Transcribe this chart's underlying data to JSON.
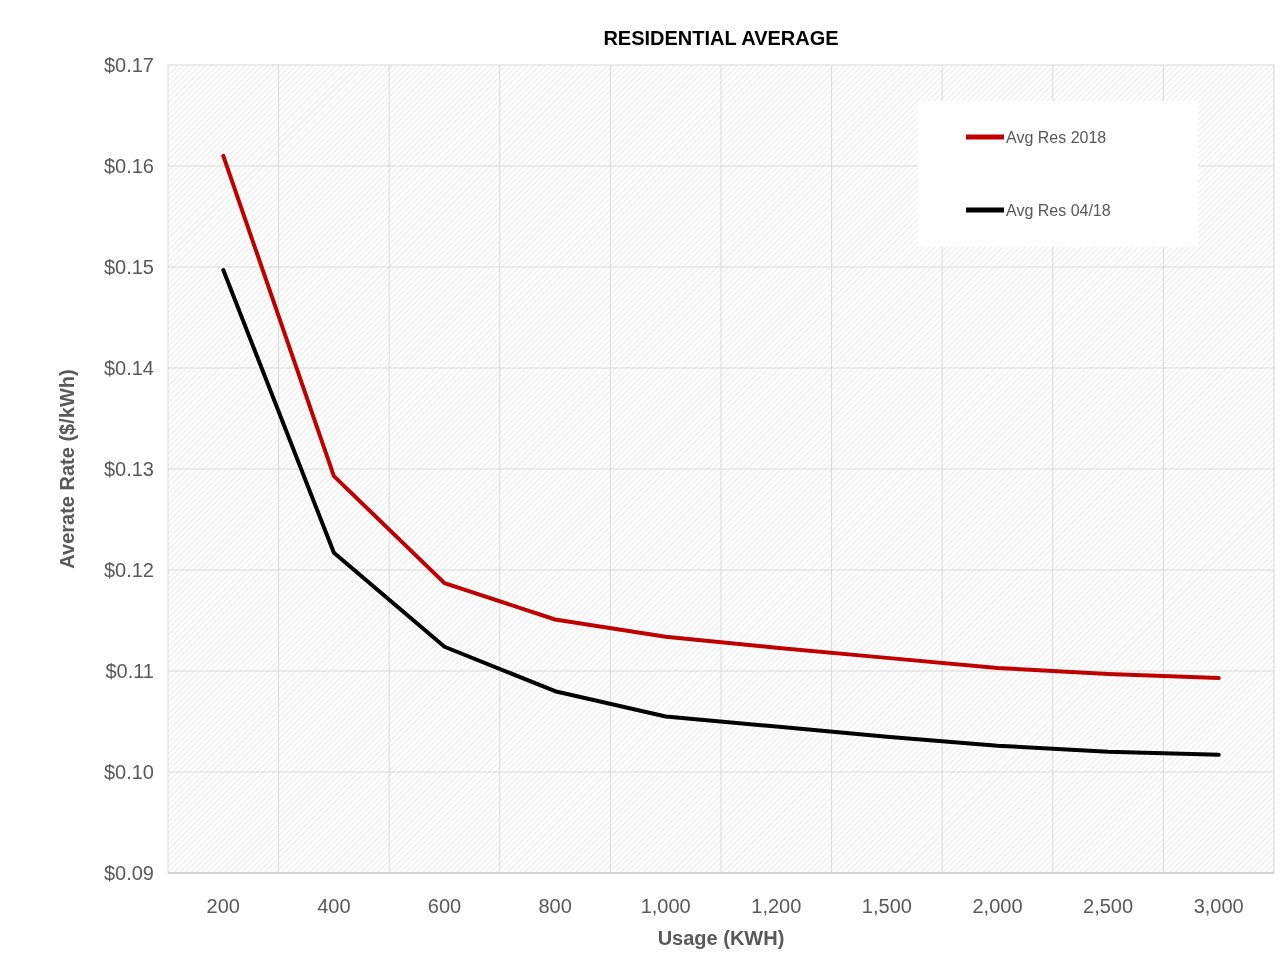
{
  "chart_data": {
    "type": "line",
    "title": "RESIDENTIAL AVERAGE",
    "xlabel": "Usage (KWH)",
    "ylabel": "Averate Rate ($/kWh)",
    "categories": [
      "200",
      "400",
      "600",
      "800",
      "1,000",
      "1,200",
      "1,500",
      "2,000",
      "2,500",
      "3,000"
    ],
    "series": [
      {
        "name": "Avg Res 2018",
        "color": "#c00000",
        "values": [
          0.161,
          0.1293,
          0.1187,
          0.1151,
          0.1134,
          0.1123,
          0.1113,
          0.1103,
          0.1097,
          0.1093
        ]
      },
      {
        "name": "Avg Res 04/18",
        "color": "#000000",
        "values": [
          0.1497,
          0.1217,
          0.1124,
          0.108,
          0.1055,
          0.1045,
          0.1035,
          0.1026,
          0.102,
          0.1017
        ]
      }
    ],
    "ylim": [
      0.09,
      0.17
    ],
    "yticks": [
      {
        "value": 0.09,
        "label": "$0.09"
      },
      {
        "value": 0.1,
        "label": "$0.10"
      },
      {
        "value": 0.11,
        "label": "$0.11"
      },
      {
        "value": 0.12,
        "label": "$0.12"
      },
      {
        "value": 0.13,
        "label": "$0.13"
      },
      {
        "value": 0.14,
        "label": "$0.14"
      },
      {
        "value": 0.15,
        "label": "$0.15"
      },
      {
        "value": 0.16,
        "label": "$0.16"
      },
      {
        "value": 0.17,
        "label": "$0.17"
      }
    ],
    "grid": true,
    "legend": "top right",
    "marker": "none",
    "line_style": "solid"
  }
}
